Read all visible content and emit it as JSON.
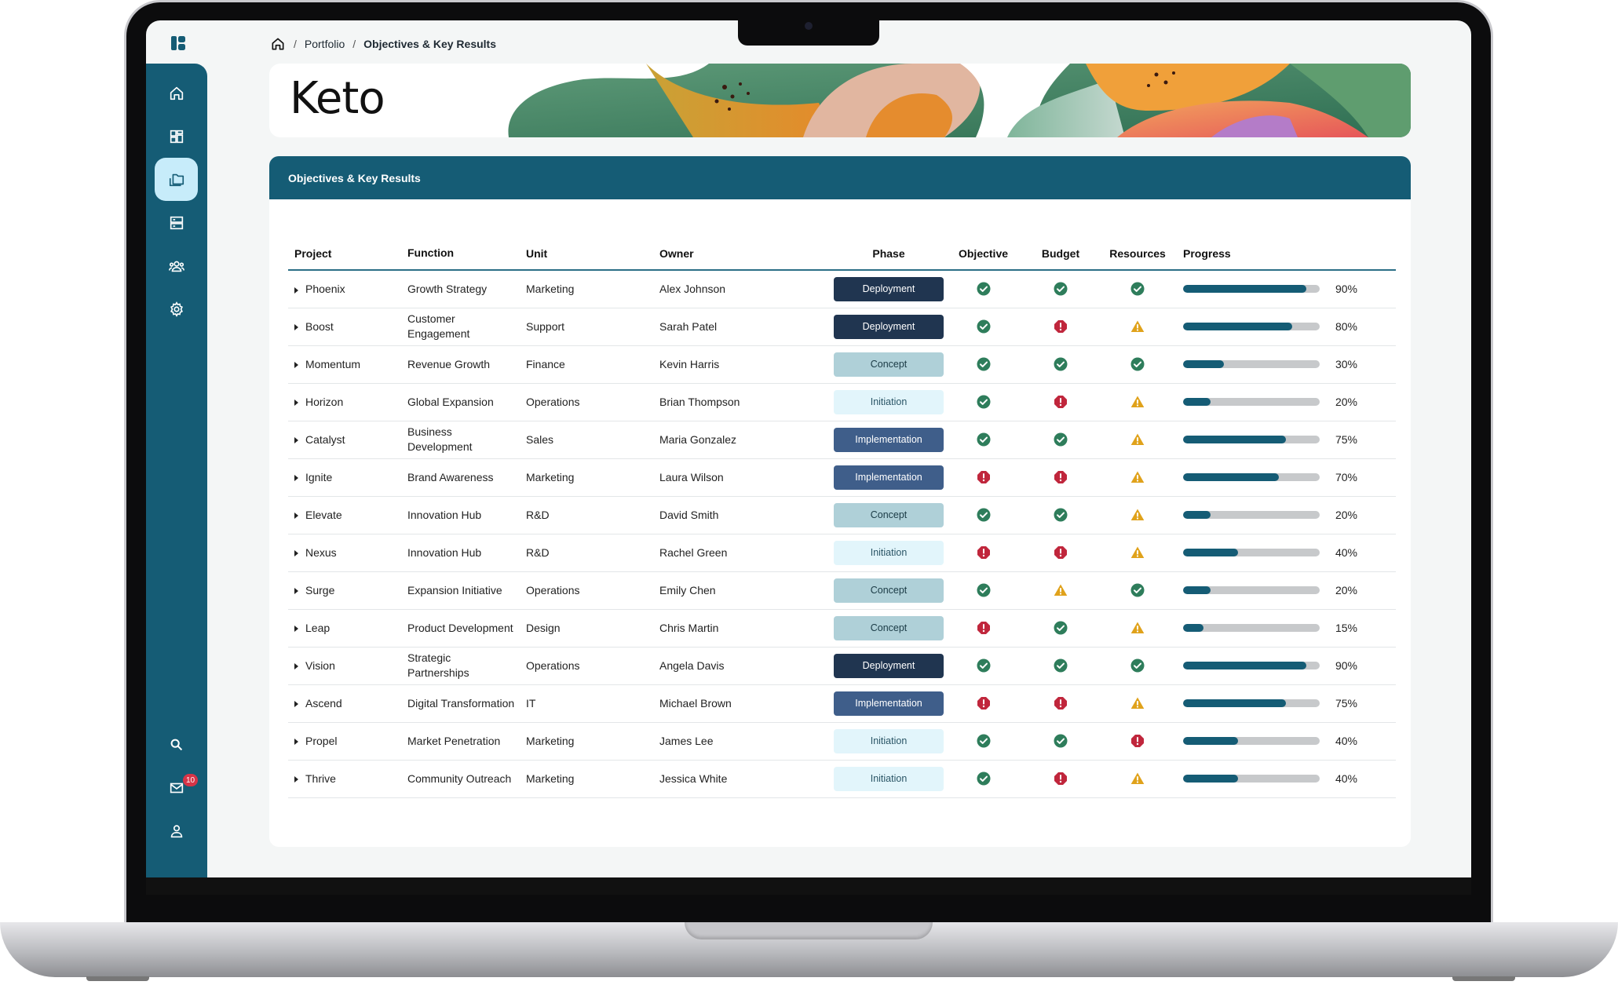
{
  "breadcrumb": {
    "items": [
      "Portfolio",
      "Objectives & Key Results"
    ]
  },
  "banner": {
    "title": "Keto"
  },
  "sidebar": {
    "items": [
      {
        "icon": "home-icon"
      },
      {
        "icon": "dashboard-icon"
      },
      {
        "icon": "portfolio-icon",
        "active": true
      },
      {
        "icon": "server-icon"
      },
      {
        "icon": "team-icon"
      },
      {
        "icon": "gear-icon"
      }
    ],
    "bottom": [
      {
        "icon": "search-icon"
      },
      {
        "icon": "mail-icon",
        "badge": "10"
      },
      {
        "icon": "user-icon"
      }
    ]
  },
  "okr": {
    "title": "Objectives & Key Results",
    "columns": [
      "Project",
      "Function",
      "Unit",
      "Owner",
      "Phase",
      "Objective",
      "Budget",
      "Resources",
      "Progress"
    ],
    "rows": [
      {
        "project": "Phoenix",
        "function": "Growth Strategy",
        "unit": "Marketing",
        "owner": "Alex Johnson",
        "phase": "Deployment",
        "objective": "ok",
        "budget": "ok",
        "resources": "ok",
        "progress": 90,
        "progress_label": "90%"
      },
      {
        "project": "Boost",
        "function": "Customer Engagement",
        "unit": "Support",
        "owner": "Sarah Patel",
        "phase": "Deployment",
        "objective": "ok",
        "budget": "error",
        "resources": "warning",
        "progress": 80,
        "progress_label": "80%"
      },
      {
        "project": "Momentum",
        "function": "Revenue Growth",
        "unit": "Finance",
        "owner": "Kevin Harris",
        "phase": "Concept",
        "objective": "ok",
        "budget": "ok",
        "resources": "ok",
        "progress": 30,
        "progress_label": "30%"
      },
      {
        "project": "Horizon",
        "function": "Global Expansion",
        "unit": "Operations",
        "owner": "Brian Thompson",
        "phase": "Initiation",
        "objective": "ok",
        "budget": "error",
        "resources": "warning",
        "progress": 20,
        "progress_label": "20%"
      },
      {
        "project": "Catalyst",
        "function": "Business Development",
        "unit": "Sales",
        "owner": "Maria Gonzalez",
        "phase": "Implementation",
        "objective": "ok",
        "budget": "ok",
        "resources": "warning",
        "progress": 75,
        "progress_label": "75%"
      },
      {
        "project": "Ignite",
        "function": "Brand Awareness",
        "unit": "Marketing",
        "owner": "Laura Wilson",
        "phase": "Implementation",
        "objective": "error",
        "budget": "error",
        "resources": "warning",
        "progress": 70,
        "progress_label": "70%"
      },
      {
        "project": "Elevate",
        "function": "Innovation Hub",
        "unit": "R&D",
        "owner": "David Smith",
        "phase": "Concept",
        "objective": "ok",
        "budget": "ok",
        "resources": "warning",
        "progress": 20,
        "progress_label": "20%"
      },
      {
        "project": "Nexus",
        "function": "Innovation Hub",
        "unit": "R&D",
        "owner": "Rachel Green",
        "phase": "Initiation",
        "objective": "error",
        "budget": "error",
        "resources": "warning",
        "progress": 40,
        "progress_label": "40%"
      },
      {
        "project": "Surge",
        "function": "Expansion Initiative",
        "unit": "Operations",
        "owner": "Emily Chen",
        "phase": "Concept",
        "objective": "ok",
        "budget": "warning",
        "resources": "ok",
        "progress": 20,
        "progress_label": "20%"
      },
      {
        "project": "Leap",
        "function": "Product Development",
        "unit": "Design",
        "owner": "Chris Martin",
        "phase": "Concept",
        "objective": "error",
        "budget": "ok",
        "resources": "warning",
        "progress": 15,
        "progress_label": "15%"
      },
      {
        "project": "Vision",
        "function": "Strategic Partnerships",
        "unit": "Operations",
        "owner": "Angela Davis",
        "phase": "Deployment",
        "objective": "ok",
        "budget": "ok",
        "resources": "ok",
        "progress": 90,
        "progress_label": "90%"
      },
      {
        "project": "Ascend",
        "function": "Digital Transformation",
        "unit": "IT",
        "owner": "Michael Brown",
        "phase": "Implementation",
        "objective": "error",
        "budget": "error",
        "resources": "warning",
        "progress": 75,
        "progress_label": "75%"
      },
      {
        "project": "Propel",
        "function": "Market Penetration",
        "unit": "Marketing",
        "owner": "James Lee",
        "phase": "Initiation",
        "objective": "ok",
        "budget": "ok",
        "resources": "error",
        "progress": 40,
        "progress_label": "40%"
      },
      {
        "project": "Thrive",
        "function": "Community Outreach",
        "unit": "Marketing",
        "owner": "Jessica White",
        "phase": "Initiation",
        "objective": "ok",
        "budget": "error",
        "resources": "warning",
        "progress": 40,
        "progress_label": "40%"
      }
    ]
  },
  "colors": {
    "primary": "#155c75",
    "ok": "#2e7d5b",
    "error": "#c0263c",
    "warning": "#e0a21b"
  }
}
